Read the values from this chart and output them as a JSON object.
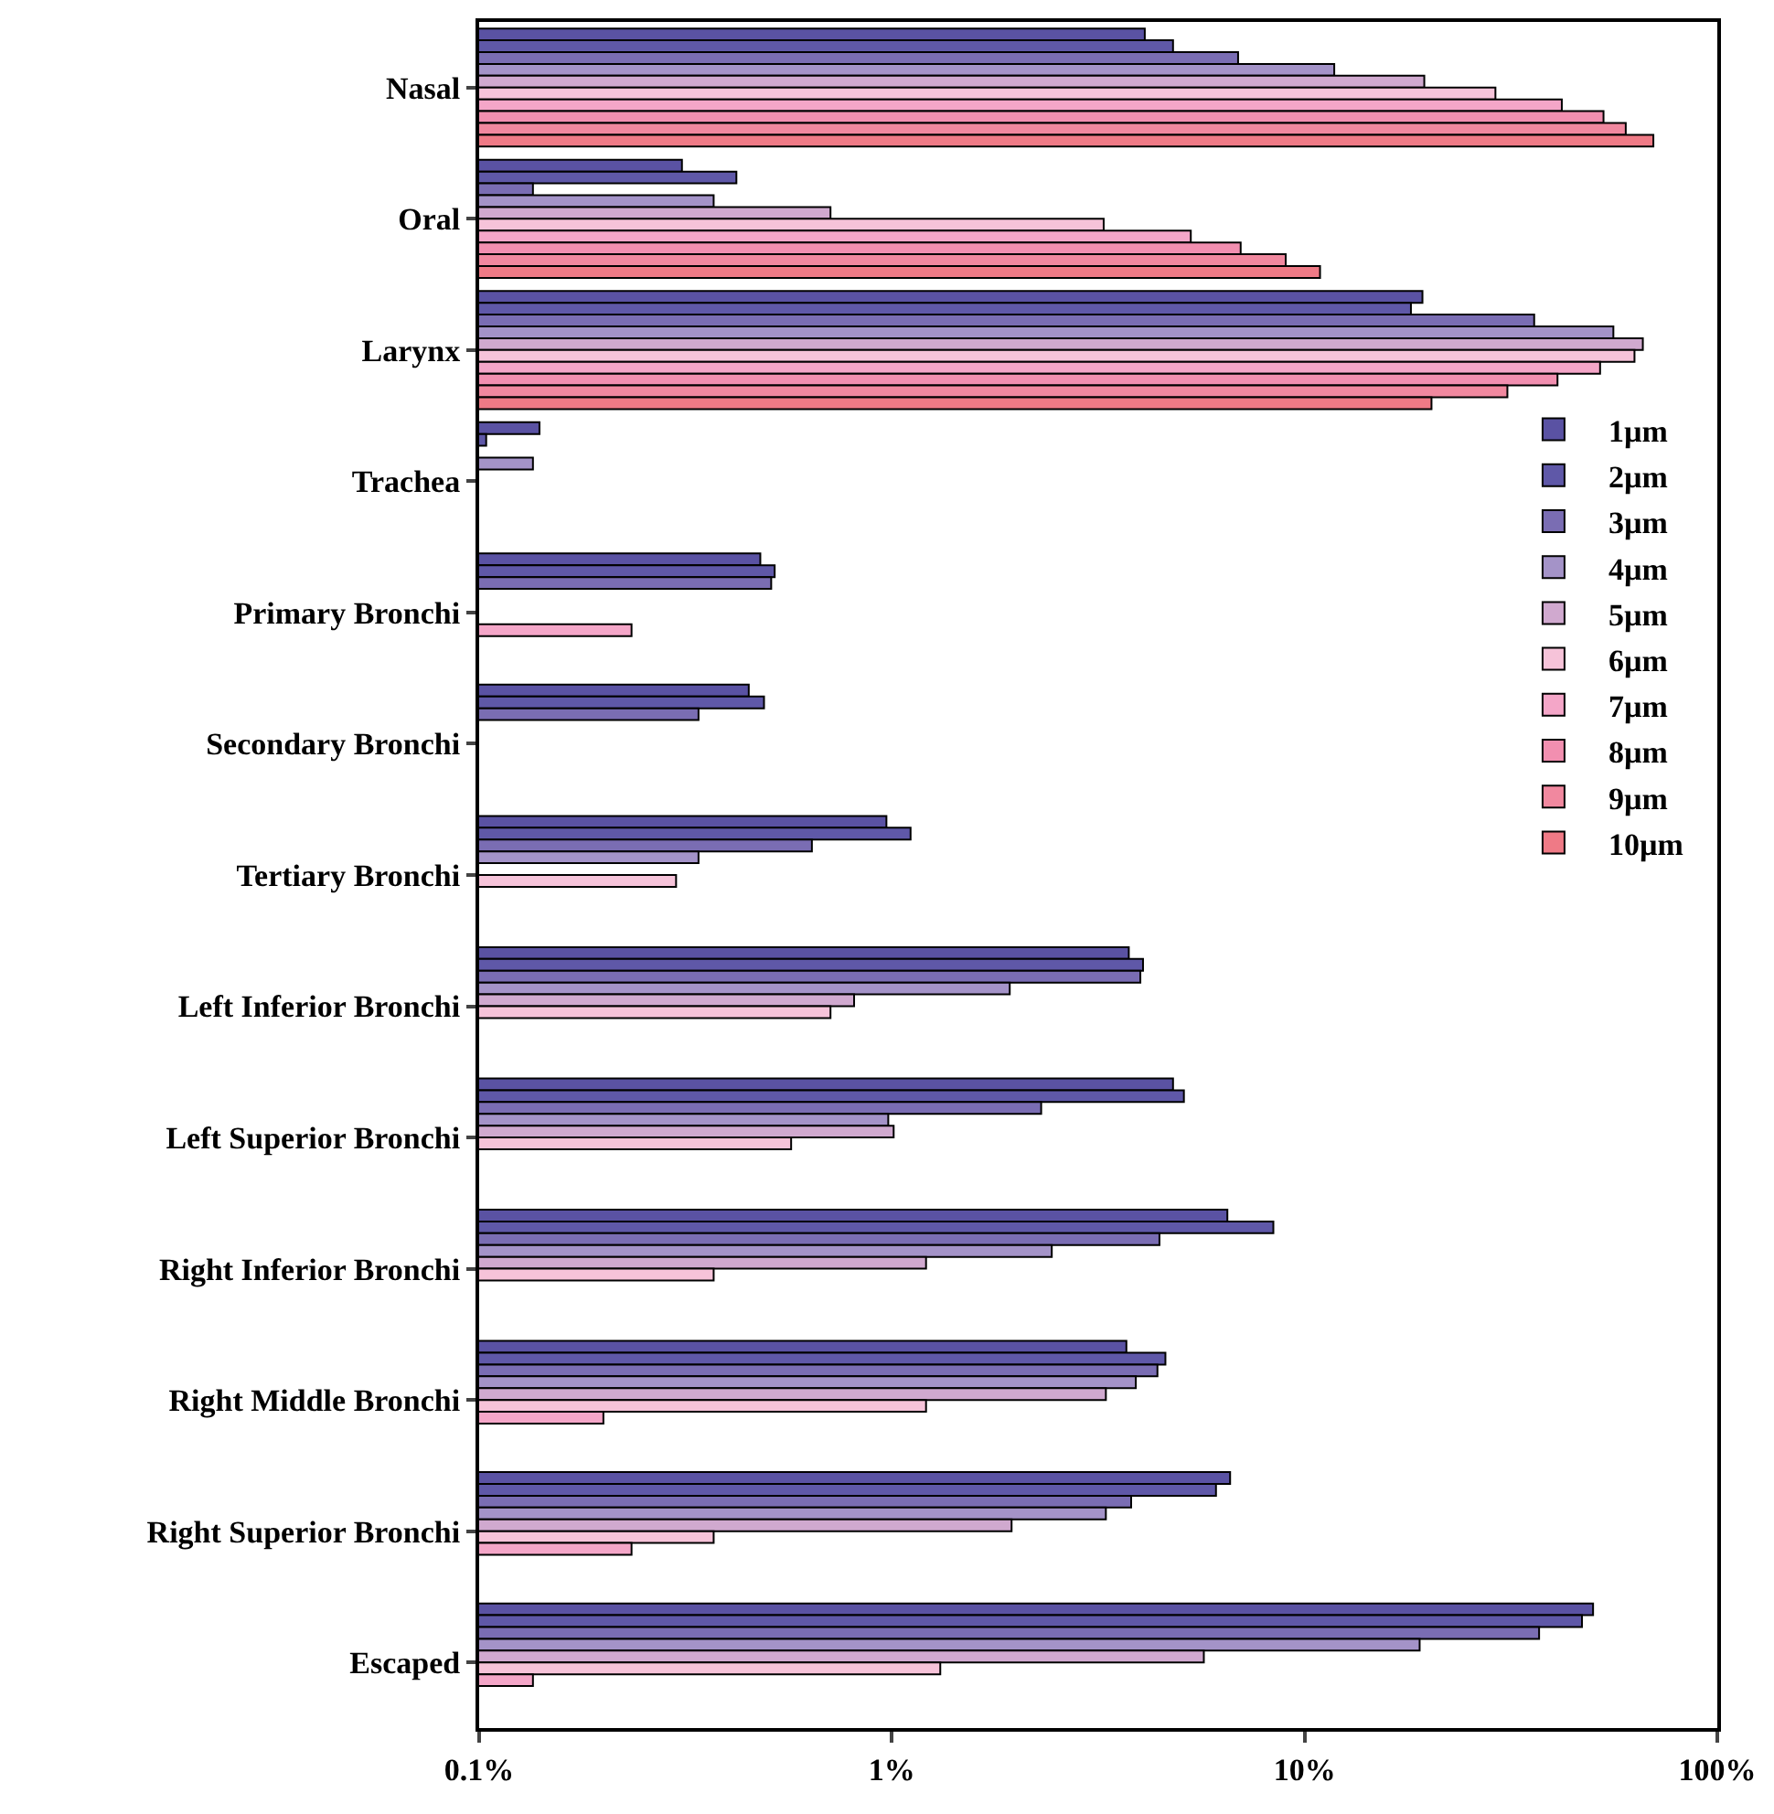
{
  "chart_data": {
    "type": "bar",
    "orientation": "horizontal",
    "log": "x",
    "grid": false,
    "legend": "top right",
    "categories": [
      "Nasal",
      "Oral",
      "Larynx",
      "Trachea",
      "Primary Bronchi",
      "Secondary Bronchi",
      "Tertiary Bronchi",
      "Left Inferior Bronchi",
      "Left Superior Bronchi",
      "Right Inferior Bronchi",
      "Right Middle Bronchi",
      "Right Superior Bronchi",
      "Escaped"
    ],
    "xlim": [
      0.1,
      100
    ],
    "xticks": [
      {
        "value": 0.1,
        "label": "0.1%"
      },
      {
        "value": 1,
        "label": "1%"
      },
      {
        "value": 10,
        "label": "10%"
      },
      {
        "value": 100,
        "label": "100%"
      }
    ],
    "series": [
      {
        "name": "1µm",
        "color": "#5a52a3",
        "values": [
          4.1,
          0.31,
          19.3,
          0.14,
          0.48,
          0.45,
          0.97,
          3.75,
          4.8,
          6.5,
          3.7,
          6.6,
          50
        ]
      },
      {
        "name": "2µm",
        "color": "#5f58a8",
        "values": [
          4.8,
          0.42,
          18.1,
          0.104,
          0.52,
          0.49,
          1.11,
          4.06,
          5.1,
          8.4,
          4.6,
          6.1,
          47
        ]
      },
      {
        "name": "3µm",
        "color": "#7a6db3",
        "values": [
          6.9,
          0.135,
          36,
          null,
          0.51,
          0.34,
          0.64,
          4.0,
          2.3,
          4.45,
          4.4,
          3.8,
          37
        ]
      },
      {
        "name": "4µm",
        "color": "#a493c8",
        "values": [
          11.8,
          0.37,
          56,
          0.135,
          null,
          null,
          0.34,
          1.93,
          0.98,
          2.44,
          3.9,
          3.3,
          19
        ]
      },
      {
        "name": "5µm",
        "color": "#d0a9cf",
        "values": [
          19.5,
          0.71,
          66,
          null,
          null,
          null,
          null,
          0.81,
          1.01,
          1.21,
          3.3,
          1.95,
          5.7
        ]
      },
      {
        "name": "6µm",
        "color": "#f6c3d9",
        "values": [
          29,
          3.26,
          63,
          null,
          null,
          null,
          0.3,
          0.71,
          0.57,
          0.37,
          1.21,
          0.37,
          1.31
        ]
      },
      {
        "name": "7µm",
        "color": "#f4a6c8",
        "values": [
          42,
          5.3,
          52,
          null,
          0.234,
          null,
          null,
          null,
          null,
          null,
          0.2,
          0.234,
          0.135
        ]
      },
      {
        "name": "8µm",
        "color": "#f28fb0",
        "values": [
          53,
          7.0,
          41,
          null,
          null,
          null,
          null,
          null,
          null,
          null,
          null,
          null,
          null
        ]
      },
      {
        "name": "9µm",
        "color": "#f1889f",
        "values": [
          60,
          9.0,
          31,
          null,
          null,
          null,
          null,
          null,
          null,
          null,
          null,
          null,
          null
        ]
      },
      {
        "name": "10µm",
        "color": "#ef7a86",
        "values": [
          70,
          10.9,
          20.3,
          null,
          null,
          null,
          null,
          null,
          null,
          null,
          null,
          null,
          null
        ]
      }
    ]
  }
}
